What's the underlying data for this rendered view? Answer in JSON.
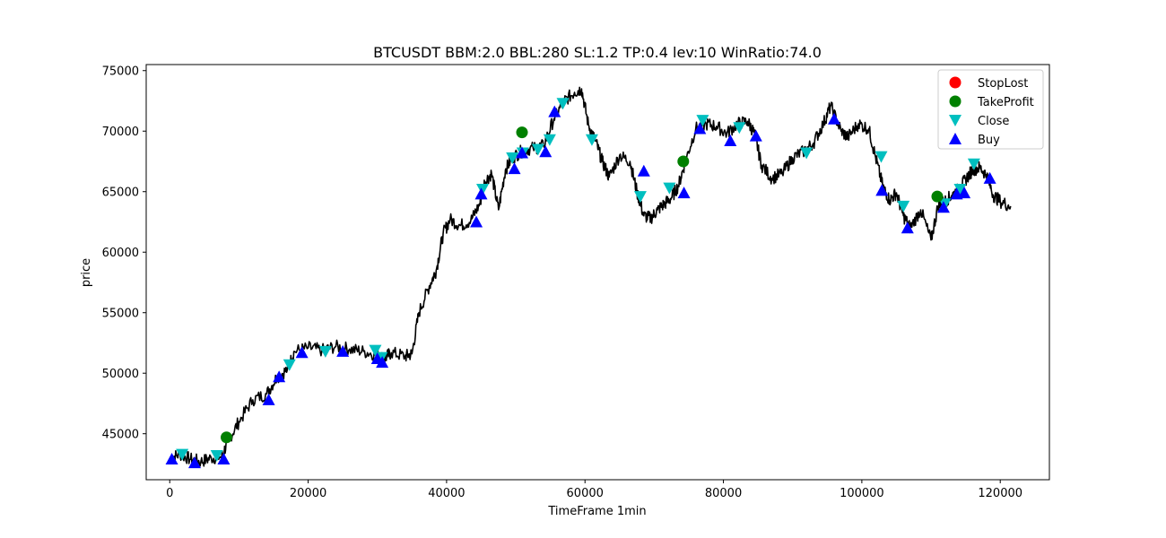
{
  "chart_data": {
    "type": "line",
    "title": "BTCUSDT BBM:2.0 BBL:280 SL:1.2 TP:0.4 lev:10 WinRatio:74.0",
    "xlabel": "TimeFrame 1min",
    "ylabel": "price",
    "xlim": [
      -3400,
      127100
    ],
    "ylim": [
      41200,
      75500
    ],
    "x_ticks": [
      0,
      20000,
      40000,
      60000,
      80000,
      100000,
      120000
    ],
    "y_ticks": [
      45000,
      50000,
      55000,
      60000,
      65000,
      70000,
      75000
    ],
    "grid": false,
    "legend_position": "top-right",
    "colors": {
      "price_line": "#000000",
      "stoplost": "#ff0000",
      "takeprofit": "#008000",
      "close": "#00bfbf",
      "buy": "#0000ff"
    },
    "legend": [
      {
        "label": "StopLost",
        "marker": "circle",
        "color": "#ff0000"
      },
      {
        "label": "TakeProfit",
        "marker": "circle",
        "color": "#008000"
      },
      {
        "label": "Close",
        "marker": "triangle-down",
        "color": "#00bfbf"
      },
      {
        "label": "Buy",
        "marker": "triangle-up",
        "color": "#0000ff"
      }
    ],
    "series": [
      {
        "name": "price",
        "points": [
          [
            0,
            43000
          ],
          [
            1500,
            43300
          ],
          [
            3000,
            42900
          ],
          [
            4500,
            42700
          ],
          [
            6000,
            43000
          ],
          [
            7500,
            43100
          ],
          [
            8500,
            44500
          ],
          [
            10000,
            46000
          ],
          [
            12000,
            47800
          ],
          [
            14000,
            48300
          ],
          [
            15500,
            49700
          ],
          [
            17000,
            50300
          ],
          [
            18000,
            51800
          ],
          [
            20000,
            52100
          ],
          [
            22000,
            51900
          ],
          [
            24000,
            52200
          ],
          [
            26000,
            52000
          ],
          [
            28000,
            51800
          ],
          [
            30000,
            51500
          ],
          [
            31000,
            51200
          ],
          [
            32000,
            51700
          ],
          [
            34000,
            51400
          ],
          [
            35000,
            51600
          ],
          [
            36000,
            55000
          ],
          [
            37500,
            57200
          ],
          [
            38500,
            58500
          ],
          [
            39500,
            61500
          ],
          [
            40500,
            62700
          ],
          [
            42000,
            62200
          ],
          [
            43500,
            62600
          ],
          [
            44800,
            64000
          ],
          [
            45500,
            65800
          ],
          [
            46500,
            66500
          ],
          [
            47500,
            63500
          ],
          [
            48500,
            66800
          ],
          [
            49500,
            67800
          ],
          [
            51000,
            68400
          ],
          [
            52500,
            68600
          ],
          [
            54000,
            68800
          ],
          [
            55500,
            71000
          ],
          [
            57000,
            72500
          ],
          [
            58500,
            73200
          ],
          [
            59500,
            73500
          ],
          [
            60500,
            70500
          ],
          [
            61500,
            69200
          ],
          [
            62500,
            67500
          ],
          [
            63500,
            66200
          ],
          [
            65000,
            68000
          ],
          [
            66500,
            67500
          ],
          [
            67500,
            65000
          ],
          [
            68500,
            63000
          ],
          [
            69500,
            62800
          ],
          [
            70500,
            63500
          ],
          [
            71500,
            64000
          ],
          [
            72500,
            64500
          ],
          [
            73500,
            65500
          ],
          [
            74500,
            67500
          ],
          [
            76000,
            70200
          ],
          [
            77500,
            70600
          ],
          [
            79000,
            70400
          ],
          [
            80500,
            69800
          ],
          [
            82000,
            70600
          ],
          [
            83500,
            70800
          ],
          [
            84500,
            69800
          ],
          [
            85500,
            67200
          ],
          [
            87000,
            66100
          ],
          [
            88500,
            66500
          ],
          [
            90000,
            67800
          ],
          [
            91500,
            68300
          ],
          [
            93000,
            69000
          ],
          [
            94500,
            70700
          ],
          [
            95500,
            72100
          ],
          [
            97000,
            70000
          ],
          [
            98000,
            69500
          ],
          [
            99500,
            70600
          ],
          [
            101000,
            70200
          ],
          [
            102000,
            67800
          ],
          [
            103000,
            65500
          ],
          [
            104000,
            64300
          ],
          [
            105000,
            64900
          ],
          [
            106000,
            63000
          ],
          [
            107000,
            62000
          ],
          [
            108500,
            63500
          ],
          [
            110000,
            61000
          ],
          [
            111000,
            63800
          ],
          [
            112000,
            64200
          ],
          [
            113000,
            64700
          ],
          [
            114000,
            65200
          ],
          [
            115000,
            66000
          ],
          [
            116000,
            66800
          ],
          [
            117000,
            67000
          ],
          [
            118000,
            66400
          ],
          [
            119000,
            64700
          ],
          [
            120000,
            64200
          ],
          [
            121500,
            63800
          ]
        ]
      },
      {
        "name": "Close",
        "marker": "triangle-down",
        "points": [
          [
            1800,
            43300
          ],
          [
            6800,
            43200
          ],
          [
            17300,
            50700
          ],
          [
            22500,
            51800
          ],
          [
            29700,
            51900
          ],
          [
            30600,
            51300
          ],
          [
            45200,
            65200
          ],
          [
            49500,
            67800
          ],
          [
            51000,
            68200
          ],
          [
            53200,
            68500
          ],
          [
            54900,
            69300
          ],
          [
            56800,
            72300
          ],
          [
            61000,
            69300
          ],
          [
            68000,
            64600
          ],
          [
            72200,
            65300
          ],
          [
            77000,
            70900
          ],
          [
            82300,
            70300
          ],
          [
            92000,
            68200
          ],
          [
            102800,
            67900
          ],
          [
            106000,
            63800
          ],
          [
            112000,
            64000
          ],
          [
            114200,
            65200
          ],
          [
            116200,
            67300
          ]
        ]
      },
      {
        "name": "Buy",
        "marker": "triangle-up",
        "points": [
          [
            300,
            42900
          ],
          [
            3600,
            42600
          ],
          [
            7800,
            42900
          ],
          [
            14300,
            47800
          ],
          [
            15800,
            49700
          ],
          [
            19100,
            51700
          ],
          [
            25000,
            51800
          ],
          [
            30000,
            51200
          ],
          [
            30700,
            50900
          ],
          [
            44300,
            62500
          ],
          [
            45000,
            64800
          ],
          [
            49800,
            66900
          ],
          [
            50900,
            68200
          ],
          [
            54300,
            68300
          ],
          [
            55600,
            71600
          ],
          [
            68500,
            66700
          ],
          [
            74300,
            64900
          ],
          [
            76600,
            70200
          ],
          [
            81000,
            69200
          ],
          [
            84700,
            69600
          ],
          [
            96000,
            71000
          ],
          [
            102900,
            65100
          ],
          [
            106600,
            62000
          ],
          [
            111800,
            63700
          ],
          [
            113700,
            64800
          ],
          [
            114800,
            64900
          ],
          [
            118500,
            66100
          ]
        ]
      },
      {
        "name": "TakeProfit",
        "marker": "circle",
        "points": [
          [
            8200,
            44700
          ],
          [
            50900,
            69900
          ],
          [
            74200,
            67500
          ],
          [
            110900,
            64600
          ]
        ]
      },
      {
        "name": "StopLost",
        "marker": "circle",
        "points": []
      }
    ]
  }
}
